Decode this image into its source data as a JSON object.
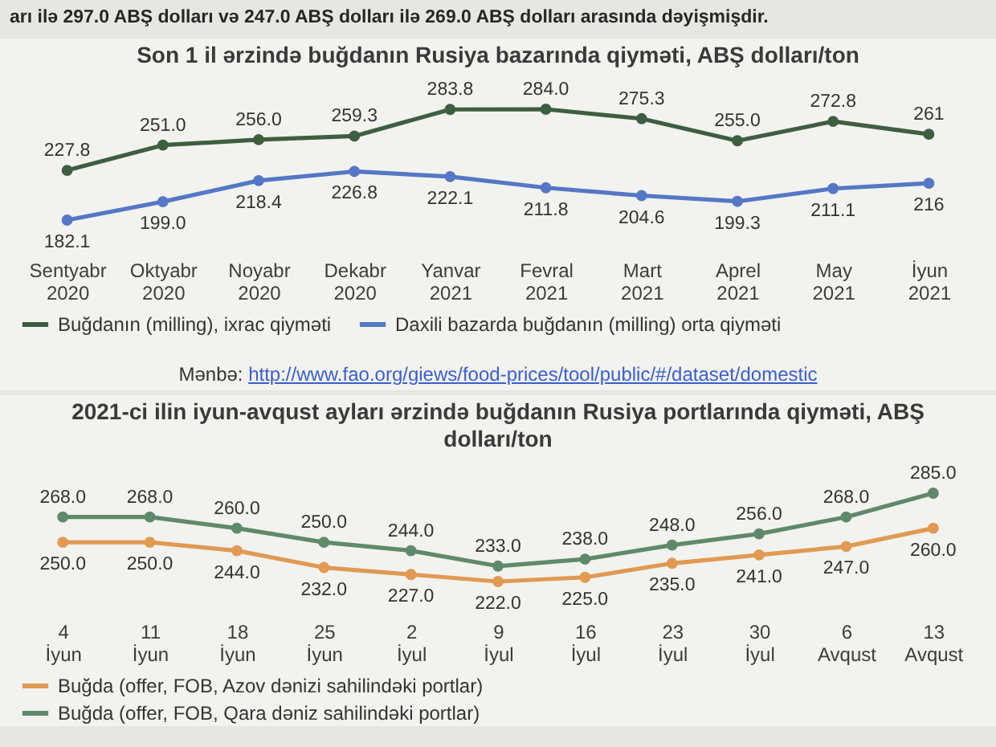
{
  "chart_data": [
    {
      "type": "other",
      "annotations": [
        "arı ilə 297.0 ABŞ dolları və 247.0 ABŞ dolları ilə 269.0 ABŞ dolları arasında dəyişmişdir."
      ]
    },
    {
      "type": "line",
      "title": "Son 1 il ərzində buğdanın Rusiya bazarında qiyməti, ABŞ dolları/ton",
      "categories": [
        "Sentyabr 2020",
        "Oktyabr 2020",
        "Noyabr 2020",
        "Dekabr 2020",
        "Yanvar 2021",
        "Fevral 2021",
        "Mart 2021",
        "Aprel 2021",
        "May 2021",
        "İyun 2021"
      ],
      "series": [
        {
          "name": "Buğdanın (milling), ixrac qiyməti",
          "color": "#3e5e40",
          "values": [
            227.8,
            251.0,
            256.0,
            259.3,
            283.8,
            284.0,
            275.3,
            255.0,
            272.8,
            261
          ],
          "value_labels": [
            "227.8",
            "251.0",
            "256.0",
            "259.3",
            "283.8",
            "284.0",
            "275.3",
            "255.0",
            "272.8",
            "261"
          ]
        },
        {
          "name": "Daxili bazarda buğdanın (milling) orta qiyməti",
          "color": "#5577c5",
          "values": [
            182.1,
            199.0,
            218.4,
            226.8,
            222.1,
            211.8,
            204.6,
            199.3,
            211.1,
            216
          ],
          "value_labels": [
            "182.1",
            "199.0",
            "218.4",
            "226.8",
            "222.1",
            "211.8",
            "204.6",
            "199.3",
            "211.1",
            "216"
          ]
        }
      ],
      "marker": "circle",
      "legend": "bottom",
      "tick_labels": "x",
      "annotations": [
        "Mənbə: http://www.fao.org/giews/food-prices/tool/public/#/dataset/domestic"
      ]
    },
    {
      "type": "line",
      "title": "2021-ci ilin iyun-avqust ayları ərzində buğdanın Rusiya portlarında qiyməti, ABŞ dolları/ton",
      "categories": [
        "4 İyun",
        "11 İyun",
        "18 İyun",
        "25 İyun",
        "2 İyul",
        "9 İyul",
        "16 İyul",
        "23 İyul",
        "30 İyul",
        "6 Avqust",
        "13 Avqust"
      ],
      "series": [
        {
          "name": "Buğda (offer, FOB, Azov dənizi sahilindəki portlar)",
          "color": "#e09a52",
          "values": [
            250.0,
            250.0,
            244.0,
            232.0,
            227.0,
            222.0,
            225.0,
            235.0,
            241.0,
            247.0,
            260.0
          ],
          "value_labels": [
            "250.0",
            "250.0",
            "244.0",
            "232.0",
            "227.0",
            "222.0",
            "225.0",
            "235.0",
            "241.0",
            "247.0",
            "260.0"
          ]
        },
        {
          "name": "Buğda (offer, FOB, Qara dəniz sahilindəki portlar)",
          "color": "#5f8a69",
          "values": [
            268.0,
            268.0,
            260.0,
            250.0,
            244.0,
            233.0,
            238.0,
            248.0,
            256.0,
            268.0,
            285.0
          ],
          "value_labels": [
            "268.0",
            "268.0",
            "260.0",
            "250.0",
            "244.0",
            "233.0",
            "238.0",
            "248.0",
            "256.0",
            "268.0",
            "285.0"
          ]
        }
      ],
      "marker": "circle",
      "legend": "bottom",
      "tick_labels": "x"
    }
  ]
}
